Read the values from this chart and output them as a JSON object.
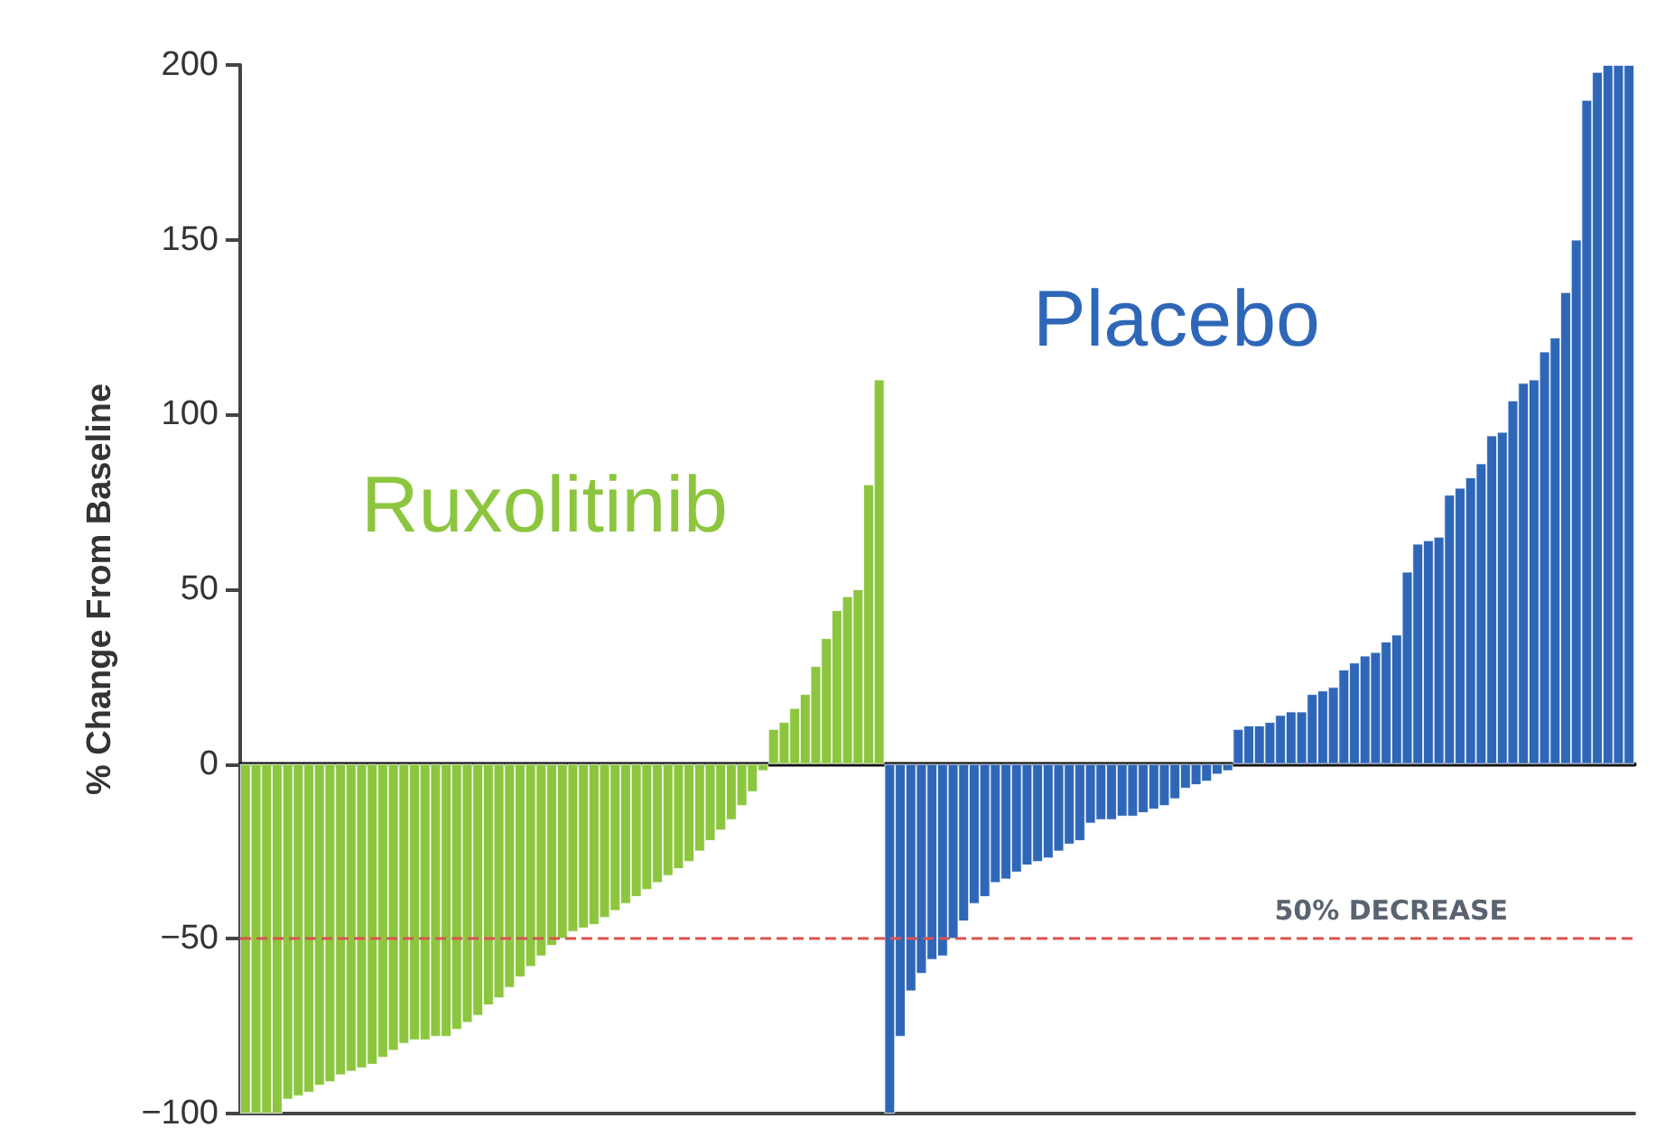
{
  "chart_data": {
    "type": "bar",
    "ylabel": "% Change From Baseline",
    "ylim": [
      -100,
      200
    ],
    "yticks": [
      -100,
      -50,
      0,
      50,
      100,
      150,
      200
    ],
    "grid": false,
    "legend": false,
    "tick_labels": "y",
    "categories": [
      null,
      null,
      null,
      null,
      null,
      null,
      null,
      null,
      null,
      null,
      null,
      null,
      null,
      null,
      null,
      null,
      null,
      null,
      null,
      null,
      null,
      null,
      null,
      null,
      null,
      null,
      null,
      null,
      null,
      null,
      null,
      null,
      null,
      null,
      null,
      null,
      null,
      null,
      null,
      null,
      null,
      null,
      null,
      null,
      null,
      null,
      null,
      null,
      null,
      null,
      null,
      null,
      null,
      null,
      null,
      null,
      null,
      null,
      null,
      null,
      null,
      null,
      null,
      null,
      null,
      null,
      null,
      null,
      null,
      null,
      null,
      null,
      null,
      null,
      null,
      null,
      null,
      null,
      null,
      null,
      null,
      null,
      null,
      null,
      null,
      null,
      null,
      null,
      null,
      null,
      null,
      null,
      null,
      null,
      null,
      null,
      null,
      null,
      null,
      null,
      null,
      null,
      null,
      null,
      null,
      null,
      null,
      null,
      null,
      null,
      null,
      null,
      null,
      null,
      null,
      null,
      null,
      null,
      null,
      null,
      null,
      null,
      null,
      null,
      null,
      null,
      null,
      null,
      null,
      null,
      null,
      null
    ],
    "series": [
      {
        "name": "Ruxolitinib",
        "color": "#8cc63f",
        "values": [
          -100,
          -100,
          -100,
          -100,
          -96,
          -95,
          -94,
          -92,
          -91,
          -89,
          -88,
          -87,
          -86,
          -84,
          -82,
          -80,
          -79,
          -79,
          -78,
          -78,
          -76,
          -74,
          -72,
          -69,
          -67,
          -64,
          -61,
          -58,
          -55,
          -52,
          -50,
          -48,
          -47,
          -46,
          -44,
          -42,
          -40,
          -38,
          -36,
          -34,
          -32,
          -30,
          -28,
          -25,
          -22,
          -19,
          -16,
          -12,
          -8,
          -2,
          10,
          12,
          16,
          20,
          28,
          36,
          44,
          48,
          50,
          80,
          110,
          null,
          null,
          null,
          null,
          null,
          null,
          null,
          null,
          null,
          null,
          null,
          null,
          null,
          null,
          null,
          null,
          null,
          null,
          null,
          null,
          null,
          null,
          null,
          null,
          null,
          null,
          null,
          null,
          null,
          null,
          null,
          null,
          null,
          null,
          null,
          null,
          null,
          null,
          null,
          null,
          null,
          null,
          null,
          null,
          null,
          null,
          null,
          null,
          null,
          null,
          null,
          null,
          null,
          null,
          null,
          null,
          null,
          null,
          null,
          null,
          null,
          null,
          null,
          null,
          null,
          null,
          null,
          null,
          null,
          null,
          null
        ]
      },
      {
        "name": "Placebo",
        "color": "#2f67b8",
        "values": [
          null,
          null,
          null,
          null,
          null,
          null,
          null,
          null,
          null,
          null,
          null,
          null,
          null,
          null,
          null,
          null,
          null,
          null,
          null,
          null,
          null,
          null,
          null,
          null,
          null,
          null,
          null,
          null,
          null,
          null,
          null,
          null,
          null,
          null,
          null,
          null,
          null,
          null,
          null,
          null,
          null,
          null,
          null,
          null,
          null,
          null,
          null,
          null,
          null,
          null,
          null,
          null,
          null,
          null,
          null,
          null,
          null,
          null,
          null,
          null,
          null,
          -100,
          -78,
          -65,
          -60,
          -56,
          -55,
          -50,
          -45,
          -40,
          -38,
          -34,
          -33,
          -31,
          -29,
          -28,
          -27,
          -25,
          -23,
          -22,
          -17,
          -16,
          -16,
          -15,
          -15,
          -14,
          -13,
          -12,
          -10,
          -7,
          -6,
          -5,
          -3,
          -2,
          10,
          11,
          11,
          12,
          14,
          15,
          15,
          20,
          21,
          22,
          27,
          29,
          31,
          32,
          35,
          37,
          55,
          63,
          64,
          65,
          77,
          79,
          82,
          86,
          94,
          95,
          104,
          109,
          110,
          118,
          122,
          135,
          150,
          190,
          198,
          200,
          200,
          200
        ]
      }
    ],
    "ref_lines": [
      {
        "axis": "y",
        "value": -50,
        "label": "50% DECREASE",
        "color": "#d9534f",
        "line_style": "dashed"
      }
    ]
  }
}
